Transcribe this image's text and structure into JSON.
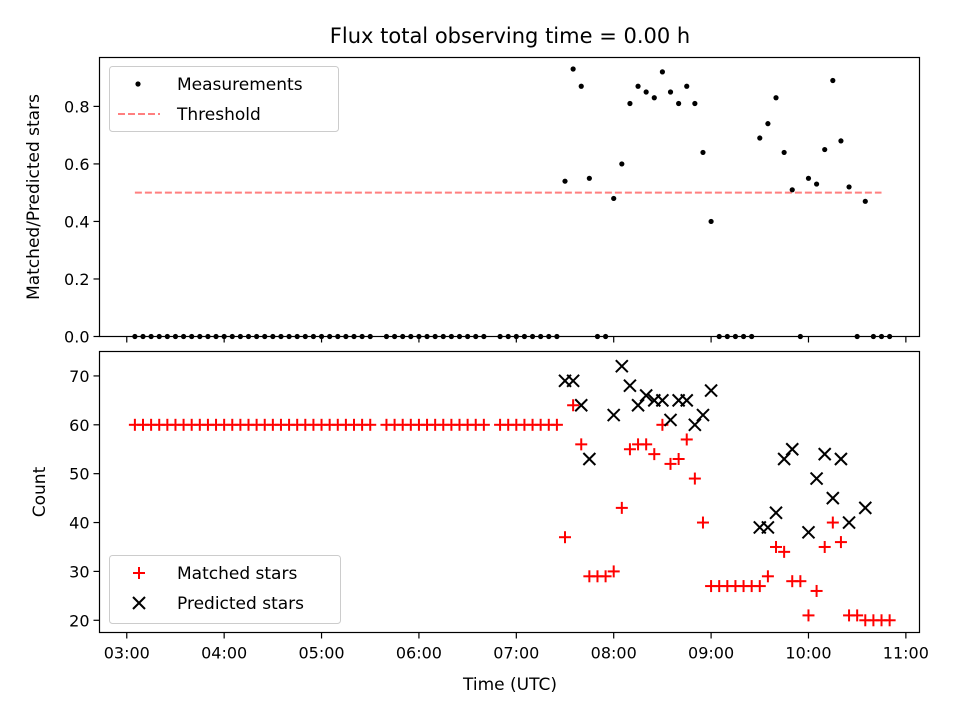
{
  "chart_data": [
    {
      "type": "scatter",
      "title": "Flux total observing time = 0.00 h",
      "xlabel": "",
      "ylabel": "Matched/Predicted stars",
      "ylim": [
        0,
        0.97
      ],
      "yticks": [
        "0.0",
        "0.2",
        "0.4",
        "0.6",
        "0.8"
      ],
      "xlim_hours": [
        2.72,
        11.14
      ],
      "legend_position": "upper-left",
      "colors": {
        "measurements": "#000000",
        "threshold": "#ff7f7f"
      },
      "series": [
        {
          "name": "Measurements",
          "style": "dot",
          "x": [
            "03:05",
            "03:10",
            "03:15",
            "03:20",
            "03:25",
            "03:30",
            "03:35",
            "03:40",
            "03:45",
            "03:50",
            "03:55",
            "04:00",
            "04:05",
            "04:10",
            "04:15",
            "04:20",
            "04:25",
            "04:30",
            "04:35",
            "04:40",
            "04:45",
            "04:50",
            "04:55",
            "05:00",
            "05:05",
            "05:10",
            "05:15",
            "05:20",
            "05:25",
            "05:30",
            "05:40",
            "05:45",
            "05:50",
            "05:55",
            "06:00",
            "06:05",
            "06:10",
            "06:15",
            "06:20",
            "06:25",
            "06:30",
            "06:35",
            "06:40",
            "06:50",
            "06:55",
            "07:00",
            "07:05",
            "07:10",
            "07:15",
            "07:20",
            "07:25",
            "07:30",
            "07:35",
            "07:40",
            "07:45",
            "07:50",
            "07:55",
            "08:00",
            "08:05",
            "08:10",
            "08:15",
            "08:20",
            "08:25",
            "08:30",
            "08:35",
            "08:40",
            "08:45",
            "08:50",
            "08:55",
            "09:00",
            "09:05",
            "09:10",
            "09:15",
            "09:20",
            "09:25",
            "09:30",
            "09:35",
            "09:40",
            "09:45",
            "09:50",
            "09:55",
            "10:00",
            "10:05",
            "10:10",
            "10:15",
            "10:20",
            "10:25",
            "10:30",
            "10:35",
            "10:40",
            "10:45",
            "10:50"
          ],
          "y": [
            0,
            0,
            0,
            0,
            0,
            0,
            0,
            0,
            0,
            0,
            0,
            0,
            0,
            0,
            0,
            0,
            0,
            0,
            0,
            0,
            0,
            0,
            0,
            0,
            0,
            0,
            0,
            0,
            0,
            0,
            0,
            0,
            0,
            0,
            0,
            0,
            0,
            0,
            0,
            0,
            0,
            0,
            0,
            0,
            0,
            0,
            0,
            0,
            0,
            0,
            0,
            0.54,
            0.93,
            0.87,
            0.55,
            0,
            0,
            0.48,
            0.6,
            0.81,
            0.87,
            0.85,
            0.83,
            0.92,
            0.85,
            0.81,
            0.87,
            0.81,
            0.64,
            0.4,
            0,
            0,
            0,
            0,
            0,
            0.69,
            0.74,
            0.83,
            0.64,
            0.51,
            0,
            0.55,
            0.53,
            0.65,
            0.89,
            0.68,
            0.52,
            0,
            0.47,
            0,
            0,
            0
          ]
        },
        {
          "name": "Threshold",
          "style": "dashed-line",
          "x": [
            "03:05",
            "10:45"
          ],
          "y": [
            0.5,
            0.5
          ]
        }
      ]
    },
    {
      "type": "scatter",
      "title": "",
      "xlabel": "Time (UTC)",
      "ylabel": "Count",
      "ylim": [
        17.5,
        75
      ],
      "yticks": [
        "20",
        "30",
        "40",
        "50",
        "60",
        "70"
      ],
      "xticks": [
        "03:00",
        "04:00",
        "05:00",
        "06:00",
        "07:00",
        "08:00",
        "09:00",
        "10:00",
        "11:00"
      ],
      "xlim_hours": [
        2.72,
        11.14
      ],
      "legend_position": "lower-left",
      "colors": {
        "matched": "#ff0000",
        "predicted": "#000000"
      },
      "series": [
        {
          "name": "Matched stars",
          "marker": "plus",
          "x": [
            "03:05",
            "03:10",
            "03:15",
            "03:20",
            "03:25",
            "03:30",
            "03:35",
            "03:40",
            "03:45",
            "03:50",
            "03:55",
            "04:00",
            "04:05",
            "04:10",
            "04:15",
            "04:20",
            "04:25",
            "04:30",
            "04:35",
            "04:40",
            "04:45",
            "04:50",
            "04:55",
            "05:00",
            "05:05",
            "05:10",
            "05:15",
            "05:20",
            "05:25",
            "05:30",
            "05:40",
            "05:45",
            "05:50",
            "05:55",
            "06:00",
            "06:05",
            "06:10",
            "06:15",
            "06:20",
            "06:25",
            "06:30",
            "06:35",
            "06:40",
            "06:50",
            "06:55",
            "07:00",
            "07:05",
            "07:10",
            "07:15",
            "07:20",
            "07:25",
            "07:30",
            "07:35",
            "07:40",
            "07:45",
            "07:50",
            "07:55",
            "08:00",
            "08:05",
            "08:10",
            "08:15",
            "08:20",
            "08:25",
            "08:30",
            "08:35",
            "08:40",
            "08:45",
            "08:50",
            "08:55",
            "09:00",
            "09:05",
            "09:10",
            "09:15",
            "09:20",
            "09:25",
            "09:30",
            "09:35",
            "09:40",
            "09:45",
            "09:50",
            "09:55",
            "10:00",
            "10:05",
            "10:10",
            "10:15",
            "10:20",
            "10:25",
            "10:30",
            "10:35",
            "10:40",
            "10:45",
            "10:50"
          ],
          "y": [
            60,
            60,
            60,
            60,
            60,
            60,
            60,
            60,
            60,
            60,
            60,
            60,
            60,
            60,
            60,
            60,
            60,
            60,
            60,
            60,
            60,
            60,
            60,
            60,
            60,
            60,
            60,
            60,
            60,
            60,
            60,
            60,
            60,
            60,
            60,
            60,
            60,
            60,
            60,
            60,
            60,
            60,
            60,
            60,
            60,
            60,
            60,
            60,
            60,
            60,
            60,
            37,
            64,
            56,
            29,
            29,
            29,
            30,
            43,
            55,
            56,
            56,
            54,
            60,
            52,
            53,
            57,
            49,
            40,
            27,
            27,
            27,
            27,
            27,
            27,
            27,
            29,
            35,
            34,
            28,
            28,
            21,
            26,
            35,
            40,
            36,
            21,
            21,
            20,
            20,
            20,
            20
          ]
        },
        {
          "name": "Predicted stars",
          "marker": "x",
          "x": [
            "07:30",
            "07:35",
            "07:40",
            "07:45",
            "08:00",
            "08:05",
            "08:10",
            "08:15",
            "08:20",
            "08:25",
            "08:30",
            "08:35",
            "08:40",
            "08:45",
            "08:50",
            "08:55",
            "09:00",
            "09:30",
            "09:35",
            "09:40",
            "09:45",
            "09:50",
            "10:00",
            "10:05",
            "10:10",
            "10:15",
            "10:20",
            "10:25",
            "10:35"
          ],
          "y": [
            69,
            69,
            64,
            53,
            62,
            72,
            68,
            64,
            66,
            65,
            65,
            61,
            65,
            65,
            60,
            62,
            67,
            39,
            39,
            42,
            53,
            55,
            38,
            49,
            54,
            45,
            53,
            40,
            43
          ]
        }
      ]
    }
  ]
}
